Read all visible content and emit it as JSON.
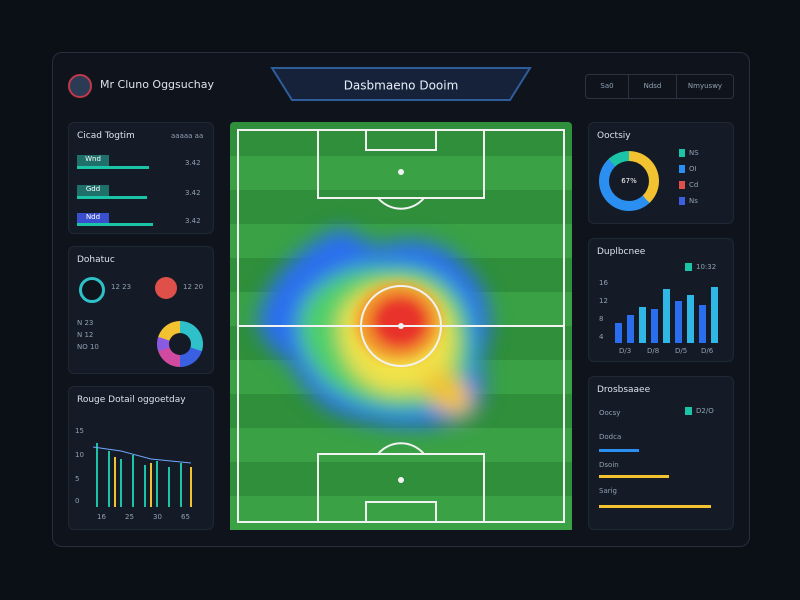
{
  "header": {
    "title": "Mr Cluno Oggsuchay",
    "tab": "Dasbmaeno Dooim",
    "buttons": [
      "Sa0",
      "Ndsd",
      "Nmyuswy"
    ]
  },
  "left_top": {
    "title": "Cicad Togtim",
    "note": "aaaaa aa",
    "rows": [
      {
        "tag": "Wnd",
        "value": "3.42"
      },
      {
        "tag": "Gdd",
        "value": "3.42"
      },
      {
        "tag": "Ndd",
        "value": "3.42"
      }
    ]
  },
  "left_mid": {
    "title": "Dohatuc",
    "stat_a": "12 23",
    "stat_b": "12 20",
    "items": [
      "N 23",
      "N 12",
      "NO 10"
    ]
  },
  "left_bottom": {
    "title": "Rouge Dotail oggoetday",
    "y_labels": [
      "15",
      "10",
      "5",
      "0"
    ],
    "x_labels": [
      "16",
      "25",
      "30",
      "65"
    ]
  },
  "right_top": {
    "title": "Ooctsiy",
    "center": "67%",
    "legend": [
      "NS",
      "OI",
      "Cd",
      "Ns"
    ]
  },
  "right_mid": {
    "title": "Duplbcnee",
    "badge": "10:32",
    "y_labels": [
      "16",
      "12",
      "8",
      "4"
    ],
    "x_labels": [
      "D/3",
      "D/8",
      "D/5",
      "D/6"
    ]
  },
  "right_bottom": {
    "title": "Drosbsaaee",
    "badge": "D2/O",
    "rows": [
      "Oocsy",
      "Dodca",
      "Dsoin",
      "Sarig"
    ]
  }
}
